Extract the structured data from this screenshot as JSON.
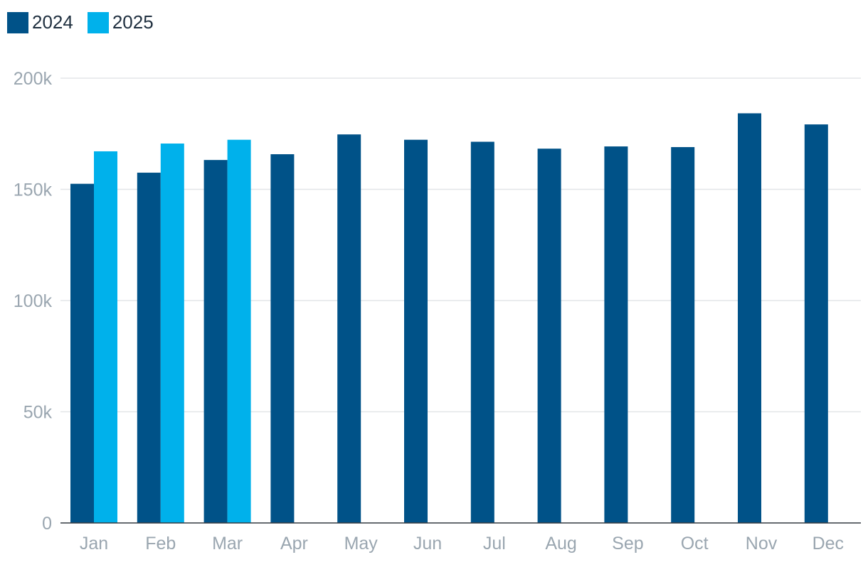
{
  "chart_data": {
    "type": "bar",
    "categories": [
      "Jan",
      "Feb",
      "Mar",
      "Apr",
      "May",
      "Jun",
      "Jul",
      "Aug",
      "Sep",
      "Oct",
      "Nov",
      "Dec"
    ],
    "series": [
      {
        "name": "2024",
        "color": "#005288",
        "values": [
          152500,
          157500,
          163200,
          165800,
          174700,
          172300,
          171400,
          168300,
          169300,
          169000,
          184200,
          179200
        ]
      },
      {
        "name": "2025",
        "color": "#00b1eb",
        "values": [
          167100,
          170600,
          172300,
          null,
          null,
          null,
          null,
          null,
          null,
          null,
          null,
          null
        ]
      }
    ],
    "y_ticks": [
      "0",
      "50k",
      "100k",
      "150k",
      "200k"
    ],
    "y_tick_values": [
      0,
      50000,
      100000,
      150000,
      200000
    ],
    "ylim": [
      0,
      200000
    ],
    "grid": true,
    "legend_position": "top-left"
  }
}
